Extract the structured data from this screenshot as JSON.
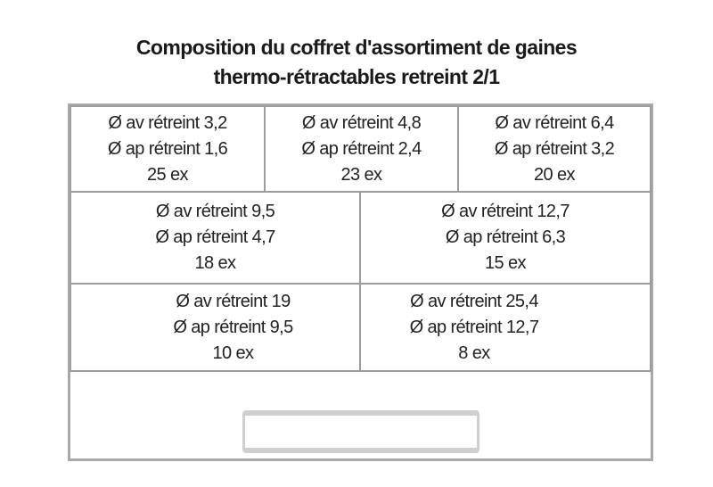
{
  "title": {
    "line1": "Composition du coffret d'assortiment de gaines",
    "line2": "thermo-rétractables retreint 2/1"
  },
  "compartments": [
    {
      "before": "Ø av rétreint 3,2",
      "after": "Ø ap rétreint 1,6",
      "count": "25 ex"
    },
    {
      "before": "Ø av rétreint 4,8",
      "after": "Ø ap rétreint 2,4",
      "count": "23 ex"
    },
    {
      "before": "Ø av rétreint 6,4",
      "after": "Ø ap rétreint 3,2",
      "count": "20 ex"
    },
    {
      "before": "Ø av rétreint 9,5",
      "after": "Ø ap rétreint 4,7",
      "count": "18 ex"
    },
    {
      "before": "Ø av rétreint 12,7",
      "after": "Ø ap rétreint 6,3",
      "count": "15 ex"
    },
    {
      "before": "Ø av rétreint 19",
      "after": "Ø ap rétreint 9,5",
      "count": "10 ex"
    },
    {
      "before": "Ø av rétreint 25,4",
      "after": "Ø ap rétreint 12,7",
      "count": "8 ex"
    }
  ]
}
